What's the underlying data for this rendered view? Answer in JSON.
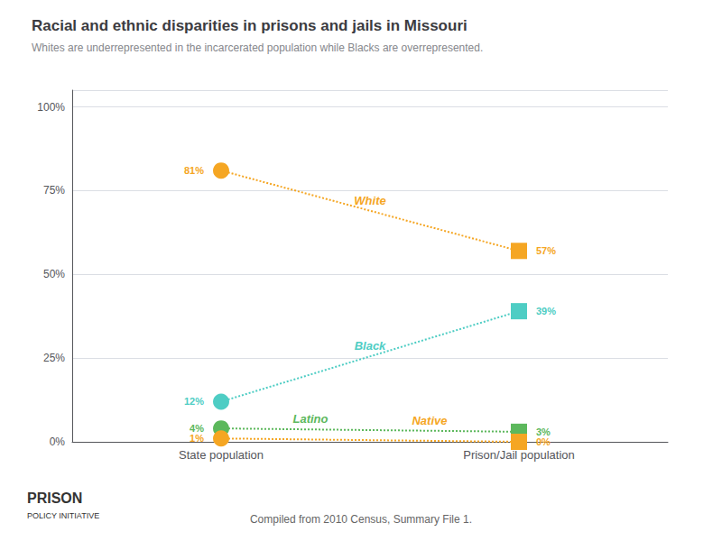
{
  "chart_data": {
    "type": "line",
    "title": "Racial and ethnic disparities in prisons and jails in Missouri",
    "subtitle": "Whites are underrepresented in the incarcerated population while Blacks are overrepresented.",
    "footnote": "Compiled from 2010 Census, Summary File 1.",
    "annotations": [
      "PRISON",
      "POLICY INITIATIVE"
    ],
    "categories": [
      "State population",
      "Prison/Jail population"
    ],
    "series": [
      {
        "name": "White",
        "color": "#f5a623",
        "values": [
          81,
          57
        ],
        "value_labels": [
          "81%",
          "57%"
        ]
      },
      {
        "name": "Black",
        "color": "#4ecdc4",
        "values": [
          12,
          39
        ],
        "value_labels": [
          "12%",
          "39%"
        ]
      },
      {
        "name": "Latino",
        "color": "#5cb85c",
        "values": [
          4,
          3
        ],
        "value_labels": [
          "4%",
          "3%"
        ]
      },
      {
        "name": "Native",
        "color": "#f5a623",
        "values": [
          1,
          0
        ],
        "value_labels": [
          "1%",
          "0%"
        ]
      }
    ],
    "ylim": [
      0,
      105
    ],
    "yticks": [
      {
        "value": 0,
        "label": "0%"
      },
      {
        "value": 25,
        "label": "25%"
      },
      {
        "value": 50,
        "label": "50%"
      },
      {
        "value": 75,
        "label": "75%"
      },
      {
        "value": 100,
        "label": "100%"
      }
    ],
    "grid": true,
    "data_labels": true,
    "line_style": "dotted"
  }
}
